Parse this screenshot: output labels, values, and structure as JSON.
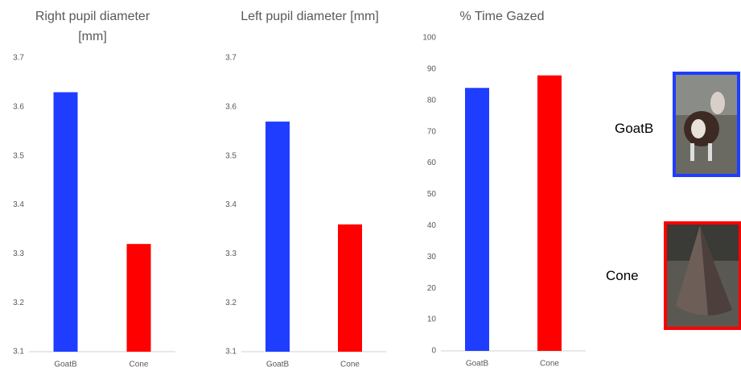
{
  "chart_data": [
    {
      "type": "bar",
      "title": "Right pupil diameter [mm]",
      "categories": [
        "GoatB",
        "Cone"
      ],
      "values": [
        3.63,
        3.32
      ],
      "colors": [
        "#1f3dff",
        "#ff0000"
      ],
      "ylim": [
        3.1,
        3.7
      ],
      "yticks": [
        3.1,
        3.2,
        3.3,
        3.4,
        3.5,
        3.6,
        3.7
      ]
    },
    {
      "type": "bar",
      "title": "Left pupil diameter [mm]",
      "categories": [
        "GoatB",
        "Cone"
      ],
      "values": [
        3.57,
        3.36
      ],
      "colors": [
        "#1f3dff",
        "#ff0000"
      ],
      "ylim": [
        3.1,
        3.7
      ],
      "yticks": [
        3.1,
        3.2,
        3.3,
        3.4,
        3.5,
        3.6,
        3.7
      ]
    },
    {
      "type": "bar",
      "title": "% Time Gazed",
      "categories": [
        "GoatB",
        "Cone"
      ],
      "values": [
        84,
        88
      ],
      "colors": [
        "#1f3dff",
        "#ff0000"
      ],
      "ylim": [
        0,
        100
      ],
      "yticks": [
        0,
        10,
        20,
        30,
        40,
        50,
        60,
        70,
        80,
        90,
        100
      ]
    }
  ],
  "legend": [
    {
      "label": "GoatB",
      "color": "#1f3dff"
    },
    {
      "label": "Cone",
      "color": "#ff0000"
    }
  ]
}
